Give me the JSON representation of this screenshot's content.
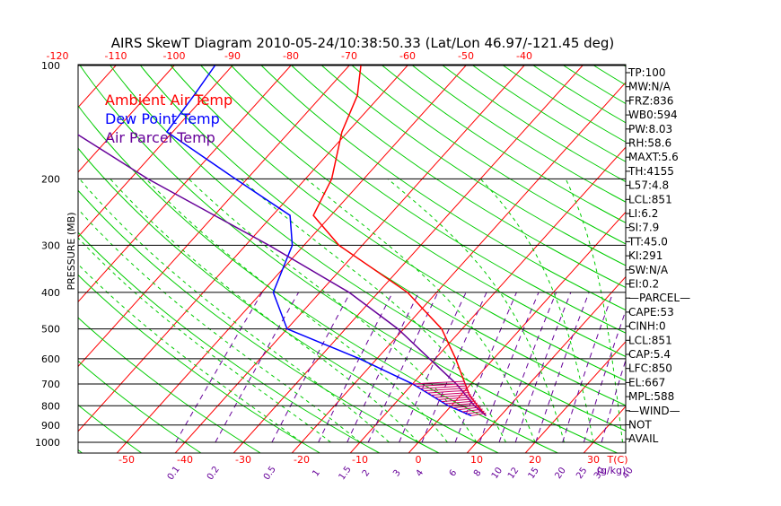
{
  "chart_data": {
    "type": "line",
    "title": "AIRS SkewT Diagram 2010-05-24/10:38:50.33 (Lat/Lon 46.97/-121.45 deg)",
    "ylabel": "PRESSURE (MB)",
    "y_scale": "log",
    "ylim": [
      1000,
      100
    ],
    "y_ticks": [
      "100",
      "200",
      "300",
      "400",
      "500",
      "600",
      "700",
      "800",
      "900",
      "1000"
    ],
    "top_temp_ticks": [
      "-120",
      "-110",
      "-100",
      "-90",
      "-80",
      "-70",
      "-60",
      "-50",
      "-40"
    ],
    "bottom_temp_ticks": [
      "-50",
      "-40",
      "-30",
      "-20",
      "-10",
      "0",
      "10",
      "20",
      "30"
    ],
    "bottom_temp_unit": "T(C)",
    "mixing_ratio_ticks": [
      "0.1",
      "0.2",
      "0.5",
      "1",
      "1.5",
      "2",
      "3",
      "4",
      "6",
      "8",
      "10",
      "12",
      "15",
      "20",
      "25",
      "30",
      "40"
    ],
    "mixing_ratio_unit": "(g/kg)",
    "legend": [
      {
        "name": "Ambient Air Temp",
        "color": "#ff0000"
      },
      {
        "name": "Dew Point Temp",
        "color": "#0000ff"
      },
      {
        "name": "Air Parcel Temp",
        "color": "#660099"
      }
    ],
    "series": [
      {
        "name": "Ambient Air Temp",
        "color": "#ff0000",
        "points": [
          {
            "p": 850,
            "t": 7.5
          },
          {
            "p": 800,
            "t": 4.5
          },
          {
            "p": 750,
            "t": 1.5
          },
          {
            "p": 700,
            "t": -1.0
          },
          {
            "p": 600,
            "t": -6.5
          },
          {
            "p": 500,
            "t": -13.5
          },
          {
            "p": 400,
            "t": -25.0
          },
          {
            "p": 300,
            "t": -44.0
          },
          {
            "p": 250,
            "t": -53.0
          },
          {
            "p": 200,
            "t": -55.5
          },
          {
            "p": 150,
            "t": -61.0
          },
          {
            "p": 120,
            "t": -64.0
          },
          {
            "p": 100,
            "t": -68.0
          }
        ]
      },
      {
        "name": "Dew Point Temp",
        "color": "#0000ff",
        "points": [
          {
            "p": 850,
            "t": 5.0
          },
          {
            "p": 800,
            "t": -0.5
          },
          {
            "p": 700,
            "t": -10.0
          },
          {
            "p": 600,
            "t": -23.0
          },
          {
            "p": 500,
            "t": -40.0
          },
          {
            "p": 400,
            "t": -48.0
          },
          {
            "p": 300,
            "t": -52.0
          },
          {
            "p": 250,
            "t": -57.0
          },
          {
            "p": 200,
            "t": -72.0
          },
          {
            "p": 150,
            "t": -91.0
          },
          {
            "p": 120,
            "t": -92.0
          },
          {
            "p": 100,
            "t": -93.0
          }
        ]
      },
      {
        "name": "Air Parcel Temp",
        "color": "#660099",
        "points": [
          {
            "p": 850,
            "t": 7.5
          },
          {
            "p": 800,
            "t": 4.0
          },
          {
            "p": 700,
            "t": -2.5
          },
          {
            "p": 600,
            "t": -11.0
          },
          {
            "p": 500,
            "t": -21.0
          },
          {
            "p": 400,
            "t": -35.0
          },
          {
            "p": 300,
            "t": -56.0
          },
          {
            "p": 200,
            "t": -87.0
          },
          {
            "p": 150,
            "t": -107.0
          },
          {
            "p": 100,
            "t": -127.0
          }
        ]
      }
    ],
    "indices": [
      "TP:100",
      "MW:N/A",
      "FRZ:836",
      "WB0:594",
      "PW:8.03",
      "RH:58.6",
      "MAXT:5.6",
      "TH:4155",
      "L57:4.8",
      "LCL:851",
      "LI:6.2",
      "SI:7.9",
      "TT:45.0",
      "KI:291",
      "SW:N/A",
      "EI:0.2",
      "—PARCEL—",
      "CAPE:53",
      "CINH:0",
      "LCL:851",
      "CAP:5.4",
      "LFC:850",
      "EL:667",
      "MPL:588",
      "—WIND—",
      "NOT",
      "AVAIL"
    ],
    "colors": {
      "isotherm": "#ff0000",
      "dry_adiabat": "#00cc00",
      "moist_adiabat": "#00cc00",
      "mixing_ratio": "#660099",
      "isobar": "#000000",
      "axis_label": "#000000",
      "temp_tick": "#ff0000",
      "mixing_tick": "#660099"
    }
  }
}
